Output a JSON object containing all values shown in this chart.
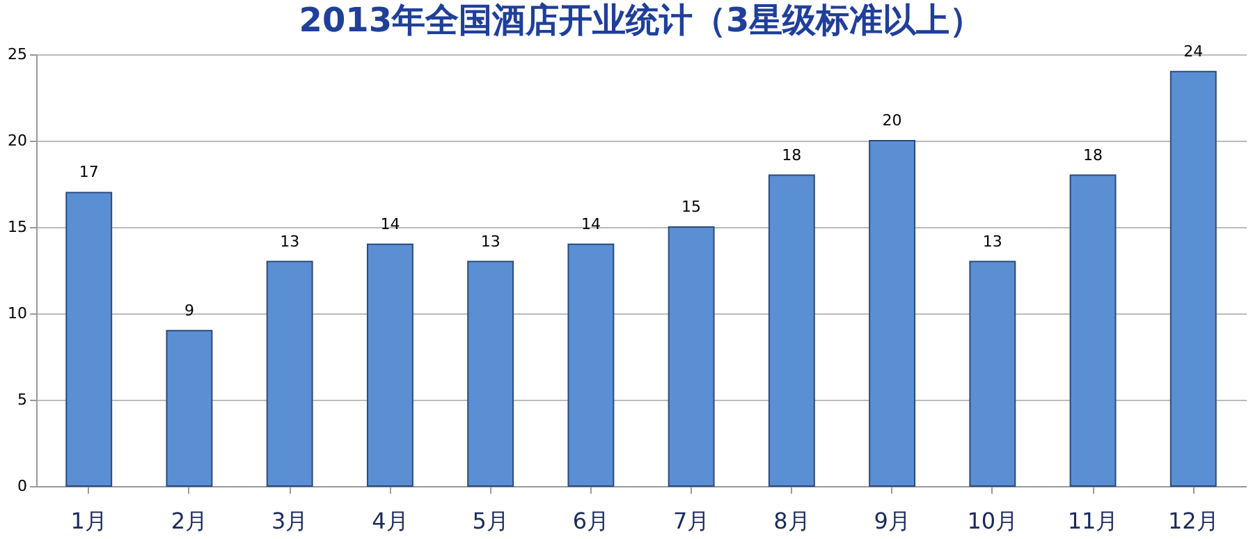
{
  "chart_data": {
    "type": "bar",
    "title": "2013年全国酒店开业统计（3星级标准以上）",
    "categories": [
      "1月",
      "2月",
      "3月",
      "4月",
      "5月",
      "6月",
      "7月",
      "8月",
      "9月",
      "10月",
      "11月",
      "12月"
    ],
    "values": [
      17,
      9,
      13,
      14,
      13,
      14,
      15,
      18,
      20,
      13,
      18,
      24
    ],
    "color": "#5b8fd4",
    "ylim": [
      0,
      25
    ],
    "yticks": [
      0,
      5,
      10,
      15,
      20,
      25
    ],
    "grid": "y",
    "data_labels": true
  }
}
